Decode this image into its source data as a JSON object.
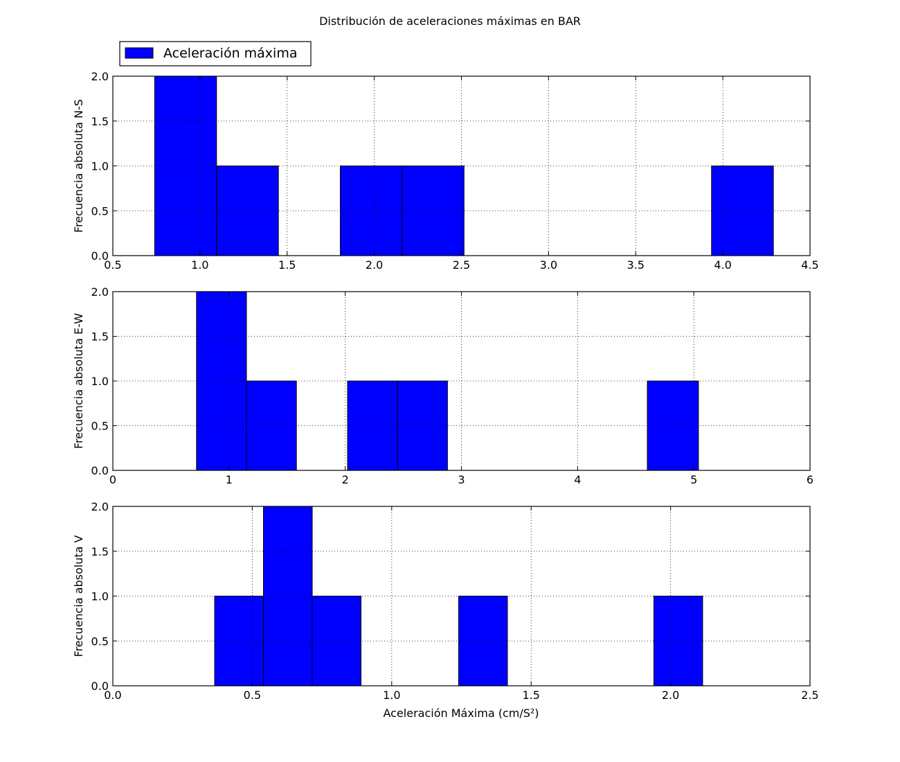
{
  "figure_title": "Distribución de aceleraciones máximas en BAR",
  "legend": {
    "label": "Aceleración máxima",
    "color": "#0000ff",
    "placement": "top-left"
  },
  "colors": {
    "bar_fill": "#0000ff",
    "bar_edge": "#000000",
    "grid": "#7f7f7f"
  },
  "chart_data": [
    {
      "type": "bar",
      "subtype": "histogram",
      "ylabel": "Frecuencia absoluta N-S",
      "xlabel": "",
      "xlim": [
        0.5,
        4.5
      ],
      "ylim": [
        0,
        2
      ],
      "xticks": [
        "0.5",
        "1.0",
        "1.5",
        "2.0",
        "2.5",
        "3.0",
        "3.5",
        "4.0",
        "4.5"
      ],
      "xtick_values": [
        0.5,
        1.0,
        1.5,
        2.0,
        2.5,
        3.0,
        3.5,
        4.0,
        4.5
      ],
      "yticks": [
        "0.0",
        "0.5",
        "1.0",
        "1.5",
        "2.0"
      ],
      "ytick_values": [
        0,
        0.5,
        1,
        1.5,
        2
      ],
      "grid": true,
      "bins": [
        {
          "x0": 0.74,
          "x1": 1.095,
          "count": 2
        },
        {
          "x0": 1.095,
          "x1": 1.45,
          "count": 1
        },
        {
          "x0": 1.805,
          "x1": 2.16,
          "count": 1
        },
        {
          "x0": 2.16,
          "x1": 2.515,
          "count": 1
        },
        {
          "x0": 3.935,
          "x1": 4.29,
          "count": 1
        }
      ]
    },
    {
      "type": "bar",
      "subtype": "histogram",
      "ylabel": "Frecuencia absoluta E-W",
      "xlabel": "",
      "xlim": [
        0,
        6
      ],
      "ylim": [
        0,
        2
      ],
      "xticks": [
        "0",
        "1",
        "2",
        "3",
        "4",
        "5",
        "6"
      ],
      "xtick_values": [
        0,
        1,
        2,
        3,
        4,
        5,
        6
      ],
      "yticks": [
        "0.0",
        "0.5",
        "1.0",
        "1.5",
        "2.0"
      ],
      "ytick_values": [
        0,
        0.5,
        1,
        1.5,
        2
      ],
      "grid": true,
      "bins": [
        {
          "x0": 0.72,
          "x1": 1.15,
          "count": 2
        },
        {
          "x0": 1.15,
          "x1": 1.58,
          "count": 1
        },
        {
          "x0": 2.02,
          "x1": 2.45,
          "count": 1
        },
        {
          "x0": 2.45,
          "x1": 2.88,
          "count": 1
        },
        {
          "x0": 4.6,
          "x1": 5.04,
          "count": 1
        }
      ]
    },
    {
      "type": "bar",
      "subtype": "histogram",
      "ylabel": "Frecuencia absoluta V",
      "xlabel": "Aceleración Máxima (cm/S²)",
      "xlim": [
        0,
        2.5
      ],
      "ylim": [
        0,
        2
      ],
      "xticks": [
        "0.0",
        "0.5",
        "1.0",
        "1.5",
        "2.0",
        "2.5"
      ],
      "xtick_values": [
        0,
        0.5,
        1.0,
        1.5,
        2.0,
        2.5
      ],
      "yticks": [
        "0.0",
        "0.5",
        "1.0",
        "1.5",
        "2.0"
      ],
      "ytick_values": [
        0,
        0.5,
        1,
        1.5,
        2
      ],
      "grid": true,
      "bins": [
        {
          "x0": 0.365,
          "x1": 0.54,
          "count": 1
        },
        {
          "x0": 0.54,
          "x1": 0.715,
          "count": 2
        },
        {
          "x0": 0.715,
          "x1": 0.89,
          "count": 1
        },
        {
          "x0": 1.24,
          "x1": 1.415,
          "count": 1
        },
        {
          "x0": 1.94,
          "x1": 2.115,
          "count": 1
        }
      ]
    }
  ]
}
